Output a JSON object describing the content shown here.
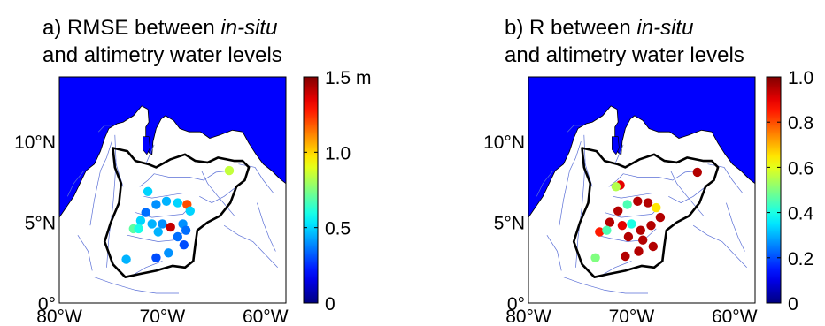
{
  "chart_data": [
    {
      "type": "scatter",
      "panel_label": "a)",
      "title": {
        "prefix": "a) RMSE between ",
        "italic": "in-situ",
        "line2": "and altimetry water levels"
      },
      "map": {
        "lon_range": [
          -80,
          -58
        ],
        "lat_range": [
          0,
          14
        ],
        "land_color": "#ffffff",
        "sea_color": "#0000ff"
      },
      "x_ticks": [
        {
          "value": -80,
          "label": "80°W"
        },
        {
          "value": -70,
          "label": "70°W"
        },
        {
          "value": -60,
          "label": "60°W"
        }
      ],
      "y_ticks": [
        {
          "value": 0,
          "label": "0°"
        },
        {
          "value": 5,
          "label": "5°N"
        },
        {
          "value": 10,
          "label": "10°N"
        }
      ],
      "colorbar": {
        "range": [
          0,
          1.5
        ],
        "ticks": [
          {
            "value": 0,
            "label": "0"
          },
          {
            "value": 0.5,
            "label": "0.5"
          },
          {
            "value": 1.0,
            "label": "1.0"
          },
          {
            "value": 1.5,
            "label": "1.5 m"
          }
        ]
      },
      "points": [
        {
          "lon": -71.4,
          "lat": 6.9,
          "value": 0.5
        },
        {
          "lon": -70.6,
          "lat": 6.1,
          "value": 0.4
        },
        {
          "lon": -69.6,
          "lat": 6.3,
          "value": 0.45
        },
        {
          "lon": -68.5,
          "lat": 6.2,
          "value": 0.5
        },
        {
          "lon": -67.6,
          "lat": 6.1,
          "value": 1.2
        },
        {
          "lon": -71.6,
          "lat": 5.6,
          "value": 0.35
        },
        {
          "lon": -67.3,
          "lat": 5.7,
          "value": 0.5
        },
        {
          "lon": -72.1,
          "lat": 5.1,
          "value": 0.5
        },
        {
          "lon": -71.0,
          "lat": 4.9,
          "value": 0.45
        },
        {
          "lon": -70.0,
          "lat": 4.9,
          "value": 0.4
        },
        {
          "lon": -69.2,
          "lat": 4.7,
          "value": 1.4
        },
        {
          "lon": -68.0,
          "lat": 4.9,
          "value": 0.4
        },
        {
          "lon": -72.8,
          "lat": 4.6,
          "value": 0.7
        },
        {
          "lon": -72.3,
          "lat": 4.6,
          "value": 0.6
        },
        {
          "lon": -70.4,
          "lat": 4.4,
          "value": 0.45
        },
        {
          "lon": -68.5,
          "lat": 4.1,
          "value": 0.35
        },
        {
          "lon": -67.7,
          "lat": 4.5,
          "value": 0.35
        },
        {
          "lon": -67.9,
          "lat": 3.6,
          "value": 0.3
        },
        {
          "lon": -69.4,
          "lat": 3.1,
          "value": 0.4
        },
        {
          "lon": -70.6,
          "lat": 2.8,
          "value": 0.3
        },
        {
          "lon": -73.5,
          "lat": 2.7,
          "value": 0.45
        },
        {
          "lon": -63.5,
          "lat": 8.2,
          "value": 0.85
        }
      ]
    },
    {
      "type": "scatter",
      "panel_label": "b)",
      "title": {
        "prefix": "b) R between ",
        "italic": "in-situ",
        "line2": "and altimetry water levels"
      },
      "map": {
        "lon_range": [
          -80,
          -58
        ],
        "lat_range": [
          0,
          14
        ],
        "land_color": "#ffffff",
        "sea_color": "#0000ff"
      },
      "x_ticks": [
        {
          "value": -80,
          "label": "80°W"
        },
        {
          "value": -70,
          "label": "70°W"
        },
        {
          "value": -60,
          "label": "60°W"
        }
      ],
      "y_ticks": [
        {
          "value": 0,
          "label": "0°"
        },
        {
          "value": 5,
          "label": "5°N"
        },
        {
          "value": 10,
          "label": "10°N"
        }
      ],
      "colorbar": {
        "range": [
          0,
          1.0
        ],
        "ticks": [
          {
            "value": 0,
            "label": "0"
          },
          {
            "value": 0.2,
            "label": "0.2"
          },
          {
            "value": 0.4,
            "label": "0.4"
          },
          {
            "value": 0.6,
            "label": "0.6"
          },
          {
            "value": 0.8,
            "label": "0.8"
          },
          {
            "value": 1.0,
            "label": "1.0"
          }
        ]
      },
      "points": [
        {
          "lon": -71.1,
          "lat": 7.3,
          "value": 0.9
        },
        {
          "lon": -71.5,
          "lat": 7.2,
          "value": 0.55
        },
        {
          "lon": -70.4,
          "lat": 6.1,
          "value": 0.45
        },
        {
          "lon": -69.4,
          "lat": 6.3,
          "value": 0.95
        },
        {
          "lon": -68.4,
          "lat": 6.2,
          "value": 0.95
        },
        {
          "lon": -67.6,
          "lat": 5.9,
          "value": 0.65
        },
        {
          "lon": -71.3,
          "lat": 5.7,
          "value": 0.95
        },
        {
          "lon": -67.2,
          "lat": 5.3,
          "value": 0.95
        },
        {
          "lon": -72.1,
          "lat": 5.0,
          "value": 0.95
        },
        {
          "lon": -70.9,
          "lat": 4.8,
          "value": 0.9
        },
        {
          "lon": -70.0,
          "lat": 4.9,
          "value": 0.4
        },
        {
          "lon": -69.1,
          "lat": 4.5,
          "value": 0.95
        },
        {
          "lon": -68.1,
          "lat": 4.8,
          "value": 0.95
        },
        {
          "lon": -73.1,
          "lat": 4.4,
          "value": 0.85
        },
        {
          "lon": -72.4,
          "lat": 4.5,
          "value": 0.45
        },
        {
          "lon": -70.3,
          "lat": 4.1,
          "value": 0.95
        },
        {
          "lon": -68.9,
          "lat": 3.9,
          "value": 0.95
        },
        {
          "lon": -67.9,
          "lat": 3.5,
          "value": 0.95
        },
        {
          "lon": -69.3,
          "lat": 3.2,
          "value": 0.95
        },
        {
          "lon": -70.6,
          "lat": 2.9,
          "value": 0.95
        },
        {
          "lon": -73.5,
          "lat": 2.8,
          "value": 0.5
        },
        {
          "lon": -63.6,
          "lat": 8.1,
          "value": 0.95
        }
      ]
    }
  ]
}
